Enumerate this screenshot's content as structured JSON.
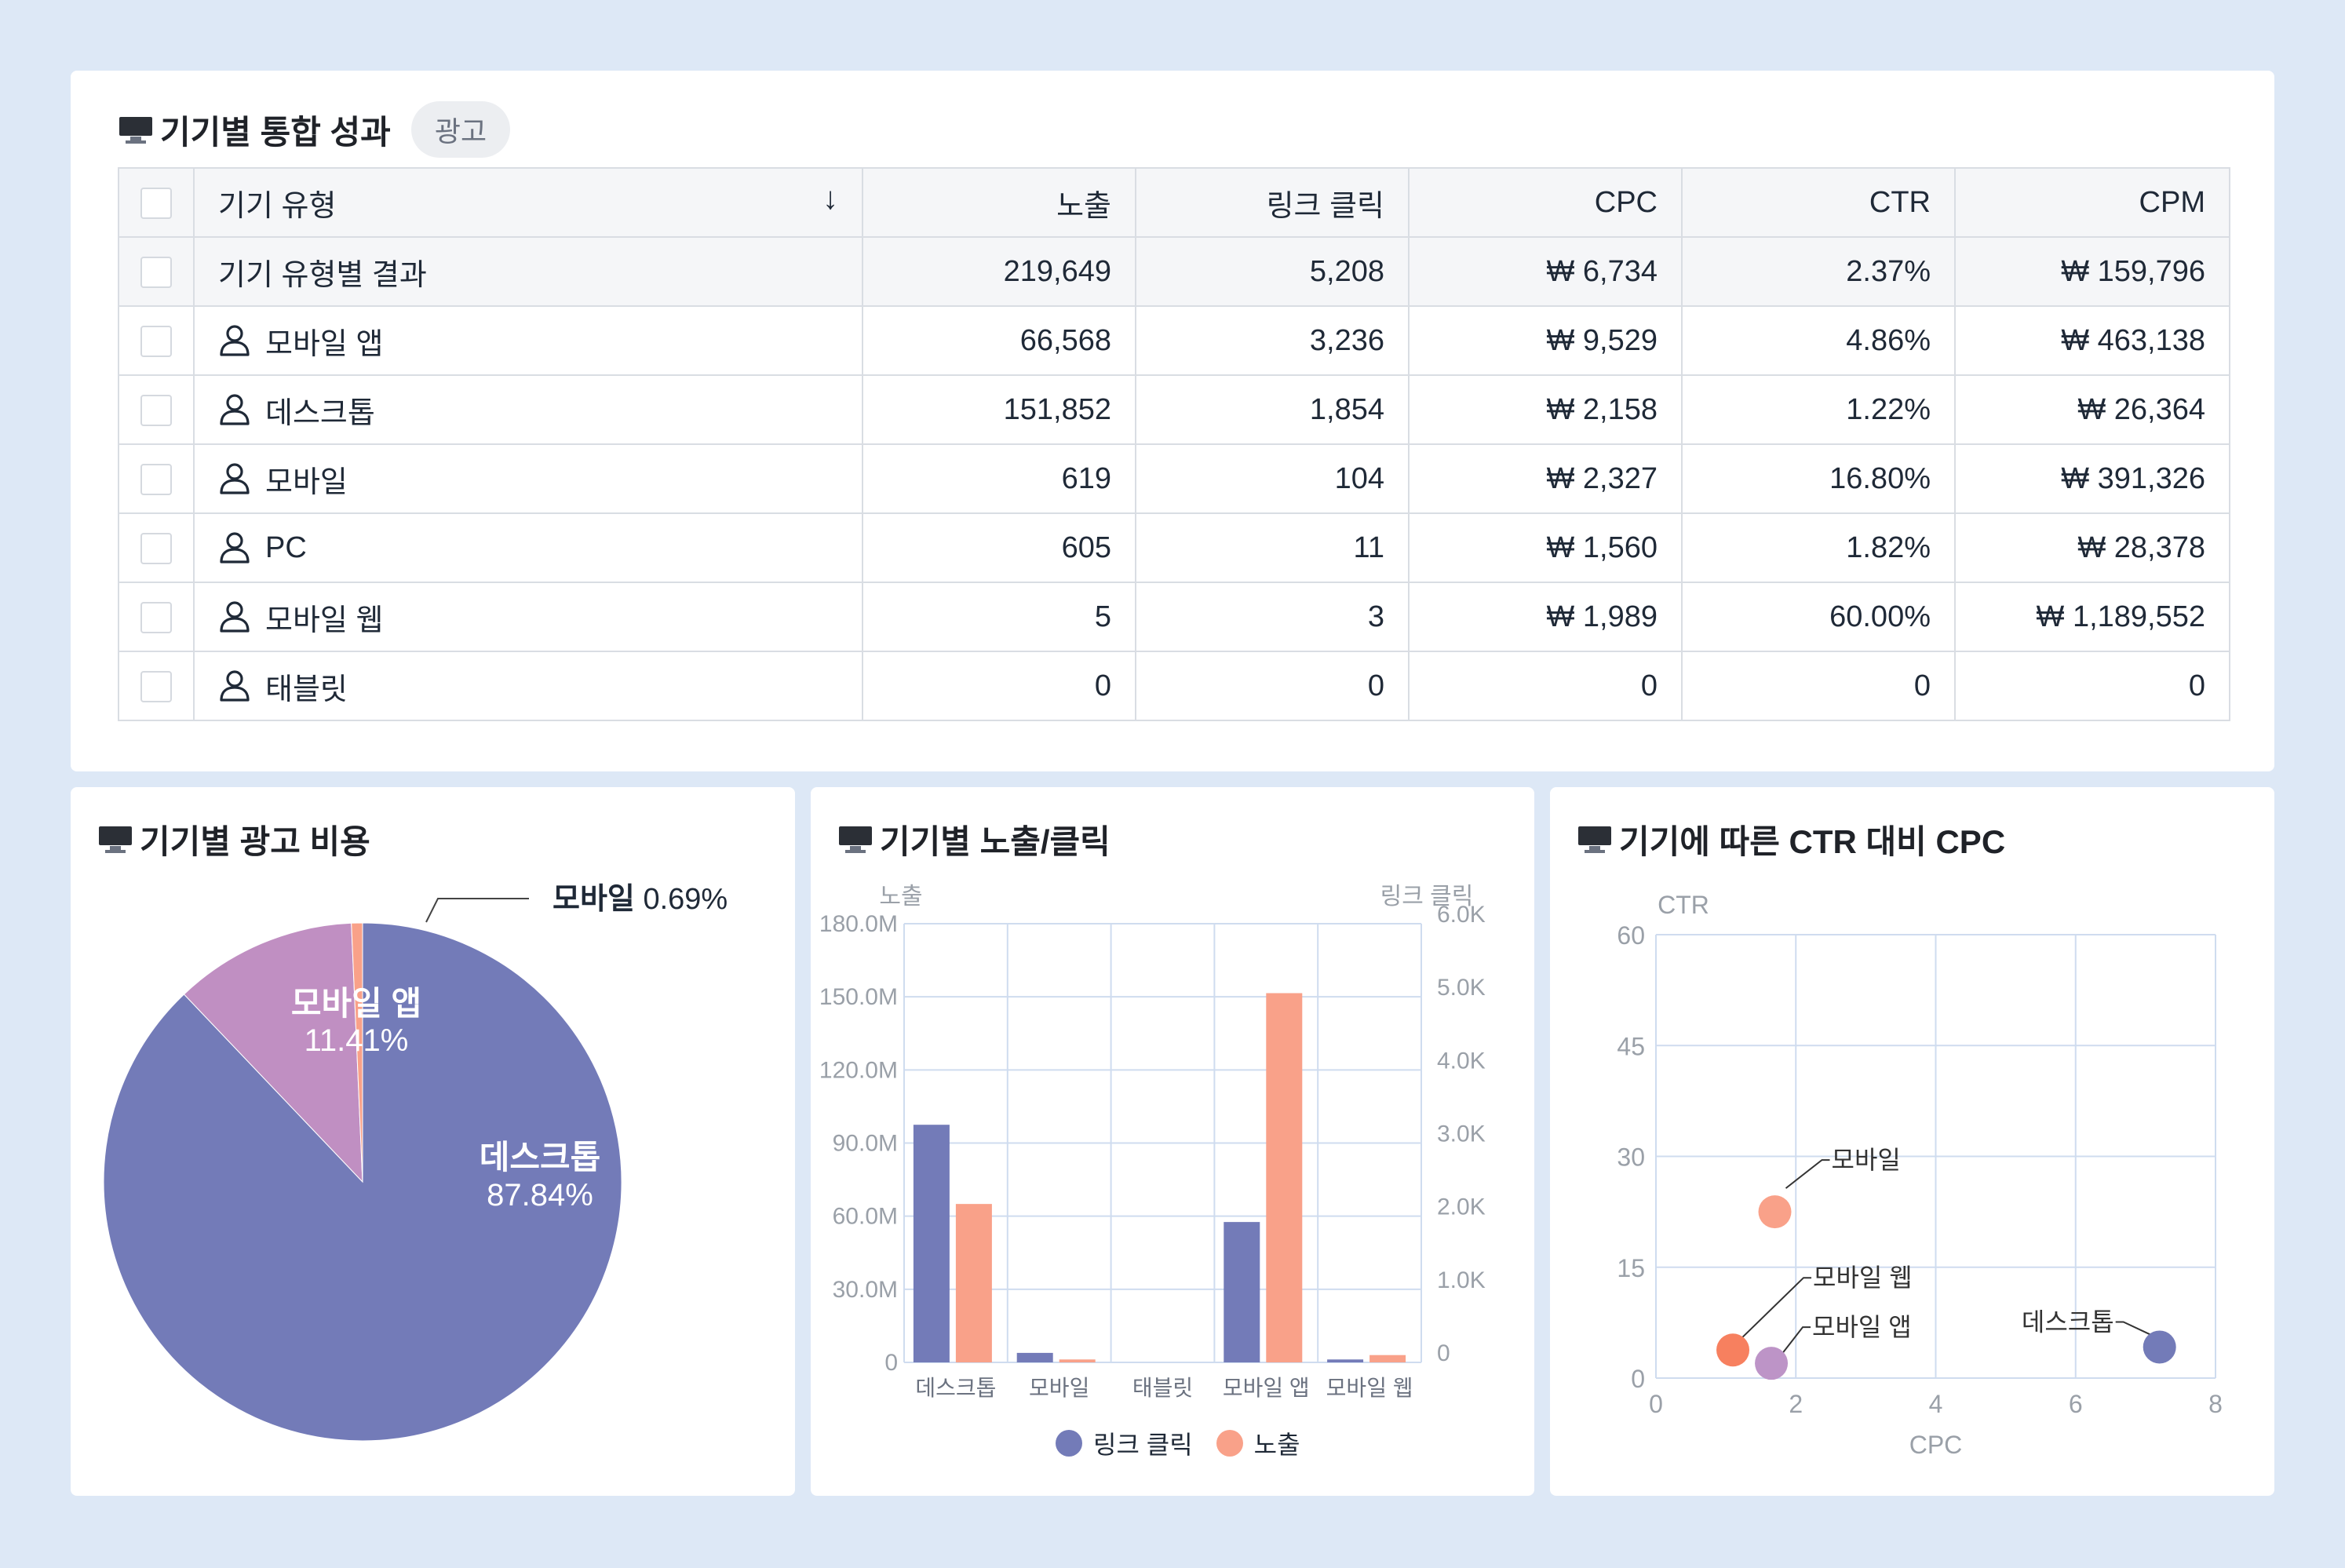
{
  "colors": {
    "purple": "#737bb8",
    "salmon": "#f9a189",
    "orchid": "#c08fc2",
    "orange": "#f7805f",
    "lilac": "#bd94c7",
    "grid": "#cfdcef"
  },
  "summary": {
    "title": "기기별 통합 성과",
    "badge": "광고",
    "columns": [
      "기기 유형",
      "노출",
      "링크 클릭",
      "CPC",
      "CTR",
      "CPM"
    ],
    "sort_icon": "arrow-down-icon",
    "total_row": [
      "기기 유형별 결과",
      "219,649",
      "5,208",
      "₩ 6,734",
      "2.37%",
      "₩ 159,796"
    ],
    "rows": [
      [
        "모바일 앱",
        "66,568",
        "3,236",
        "₩ 9,529",
        "4.86%",
        "₩ 463,138"
      ],
      [
        "데스크톱",
        "151,852",
        "1,854",
        "₩ 2,158",
        "1.22%",
        "₩ 26,364"
      ],
      [
        "모바일",
        "619",
        "104",
        "₩ 2,327",
        "16.80%",
        "₩ 391,326"
      ],
      [
        "PC",
        "605",
        "11",
        "₩ 1,560",
        "1.82%",
        "₩ 28,378"
      ],
      [
        "모바일 웹",
        "5",
        "3",
        "₩ 1,989",
        "60.00%",
        "₩ 1,189,552"
      ],
      [
        "태블릿",
        "0",
        "0",
        "0",
        "0",
        "0"
      ]
    ]
  },
  "pie_card": {
    "title": "기기별 광고 비용"
  },
  "bar_card": {
    "title": "기기별 노출/클릭"
  },
  "scatter_card": {
    "title": "기기에 따른 CTR 대비 CPC"
  },
  "chart_data": [
    {
      "type": "pie",
      "slices": [
        {
          "label": "데스크톱",
          "value": 87.84,
          "text": "87.84%",
          "color": "#737bb8"
        },
        {
          "label": "모바일 앱",
          "value": 11.41,
          "text": "11.41%",
          "color": "#c08fc2"
        },
        {
          "label": "모바일",
          "value": 0.69,
          "text": "0.69%",
          "color": "#f9a189"
        }
      ]
    },
    {
      "type": "bar",
      "categories": [
        "데스크톱",
        "모바일",
        "태블릿",
        "모바일 앱",
        "모바일 웹"
      ],
      "series": [
        {
          "name": "링크 클릭",
          "axis": "right",
          "color": "#737bb8",
          "values": [
            3250,
            130,
            0,
            1920,
            40
          ]
        },
        {
          "name": "노출",
          "axis": "left",
          "color": "#f9a189",
          "values": [
            65000000,
            1200000,
            0,
            151500000,
            3000000
          ]
        }
      ],
      "left_axis": {
        "label": "노출",
        "ticks": [
          "0",
          "30.0M",
          "60.0M",
          "90.0M",
          "120.0M",
          "150.0M",
          "180.0M"
        ],
        "max": 180000000
      },
      "right_axis": {
        "label": "링크 클릭",
        "ticks": [
          "0",
          "1.0K",
          "2.0K",
          "3.0K",
          "4.0K",
          "5.0K",
          "6.0K"
        ],
        "max": 6000
      },
      "legend": "bottom"
    },
    {
      "type": "scatter",
      "xlabel": "CPC",
      "ylabel": "CTR",
      "xlim": [
        0,
        8
      ],
      "ylim": [
        0,
        60
      ],
      "xticks": [
        "0",
        "2",
        "4",
        "6",
        "8"
      ],
      "yticks": [
        "0",
        "15",
        "30",
        "45",
        "60"
      ],
      "points": [
        {
          "label": "모바일",
          "x": 1.7,
          "y": 22.5,
          "color": "#f9a189"
        },
        {
          "label": "모바일 웹",
          "x": 1.1,
          "y": 3.8,
          "color": "#f7805f"
        },
        {
          "label": "모바일 앱",
          "x": 1.65,
          "y": 2.0,
          "color": "#bd94c7"
        },
        {
          "label": "데스크톱",
          "x": 7.2,
          "y": 4.2,
          "color": "#737bb8"
        }
      ]
    }
  ]
}
